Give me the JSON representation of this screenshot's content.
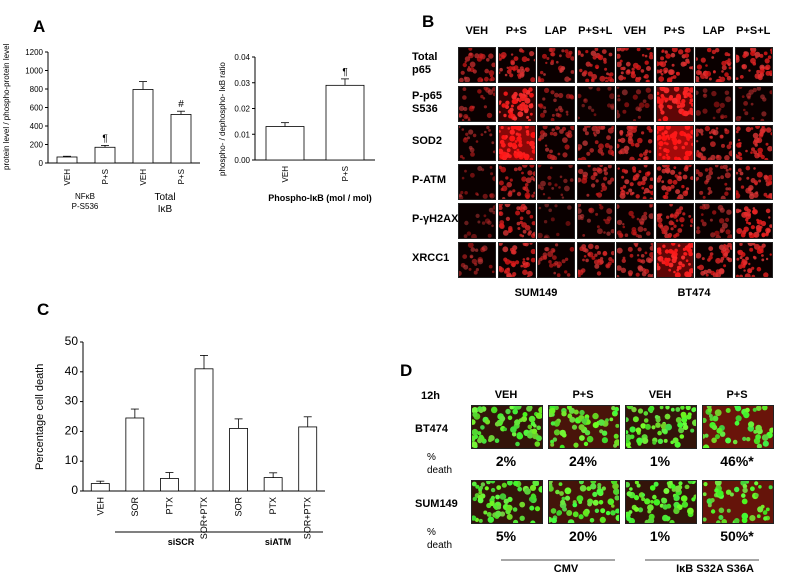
{
  "panel_a": {
    "letter": "A",
    "left_chart": {
      "y_label": "protein level / phospho-protein level",
      "x_ticks": [
        "VEH",
        "P+S",
        "VEH",
        "P+S"
      ],
      "group_labels": [
        [
          "NFκB",
          "P-S536"
        ],
        [
          "Total",
          "IκB"
        ]
      ]
    },
    "right_chart": {
      "y_label": "phospho- / dephospho- IκB ratio",
      "x_ticks": [
        "VEH",
        "P+S"
      ],
      "x_label": "Phospho-IκB (mol / mol)"
    },
    "markers": {
      "para": "¶",
      "hash": "#"
    }
  },
  "panel_b": {
    "letter": "B",
    "columns": [
      "VEH",
      "P+S",
      "LAP",
      "P+S+L",
      "VEH",
      "P+S",
      "LAP",
      "P+S+L"
    ],
    "rows": [
      [
        "Total",
        "p65"
      ],
      [
        "P-p65",
        "S536"
      ],
      [
        "SOD2"
      ],
      [
        "P-ATM"
      ],
      [
        "P-γH2AX"
      ],
      [
        "XRCC1"
      ]
    ],
    "cell_lines": [
      "SUM149",
      "BT474"
    ],
    "intensity": [
      [
        0.45,
        0.55,
        0.45,
        0.55,
        0.6,
        0.65,
        0.6,
        0.65
      ],
      [
        0.3,
        0.85,
        0.3,
        0.1,
        0.2,
        0.9,
        0.15,
        0.2
      ],
      [
        0.25,
        0.95,
        0.4,
        0.45,
        0.55,
        0.98,
        0.5,
        0.6
      ],
      [
        0.15,
        0.5,
        0.2,
        0.45,
        0.6,
        0.6,
        0.4,
        0.55
      ],
      [
        0.1,
        0.55,
        0.05,
        0.25,
        0.35,
        0.55,
        0.3,
        0.7
      ],
      [
        0.25,
        0.6,
        0.35,
        0.5,
        0.5,
        0.9,
        0.6,
        0.65
      ]
    ]
  },
  "panel_c": {
    "letter": "C",
    "x_ticks": [
      "VEH",
      "SOR",
      "PTX",
      "SOR+PTX",
      "SOR",
      "PTX",
      "SOR+PTX"
    ],
    "group_labels": [
      "siSCR",
      "siATM"
    ]
  },
  "panel_d": {
    "letter": "D",
    "time_label": "12h",
    "columns": [
      "VEH",
      "P+S",
      "VEH",
      "P+S"
    ],
    "rows": [
      {
        "cell_line": "BT474",
        "death_label": [
          "%",
          "death"
        ],
        "percentages": [
          "2%",
          "24%",
          "1%",
          "46%*"
        ],
        "red_fraction": [
          0.1,
          0.3,
          0.1,
          0.6
        ]
      },
      {
        "cell_line": "SUM149",
        "death_label": [
          "%",
          "death"
        ],
        "percentages": [
          "5%",
          "20%",
          "1%",
          "50%*"
        ],
        "red_fraction": [
          0.1,
          0.25,
          0.1,
          0.55
        ]
      }
    ],
    "group_labels": [
      "CMV",
      "IκB S32A S36A"
    ]
  },
  "chart_data": [
    {
      "type": "bar",
      "ylabel": "protein level / phospho-protein level",
      "categories": [
        "VEH",
        "P+S",
        "VEH",
        "P+S"
      ],
      "values": [
        65,
        170,
        795,
        525
      ],
      "errors": [
        8,
        20,
        85,
        35
      ],
      "ylim": [
        0,
        1200
      ],
      "yticks": [
        0,
        200,
        400,
        600,
        800,
        1000,
        1200
      ],
      "annotations": [
        "",
        "¶",
        "",
        "#"
      ]
    },
    {
      "type": "bar",
      "ylabel": "phospho- / dephospho- IκB ratio",
      "xlabel": "Phospho-IκB (mol / mol)",
      "categories": [
        "VEH",
        "P+S"
      ],
      "values": [
        0.013,
        0.029
      ],
      "errors": [
        0.0015,
        0.0025
      ],
      "ylim": [
        0,
        0.04
      ],
      "yticks": [
        "0.00",
        "0.01",
        "0.02",
        "0.03",
        "0.04"
      ],
      "annotations": [
        "",
        "¶"
      ]
    },
    {
      "type": "bar",
      "ylabel": "Percentage cell death",
      "categories": [
        "VEH",
        "SOR",
        "PTX",
        "SOR+PTX",
        "SOR",
        "PTX",
        "SOR+PTX"
      ],
      "values": [
        2.5,
        24.5,
        4.2,
        41,
        21,
        4.5,
        21.5
      ],
      "errors": [
        0.8,
        3,
        2,
        4.5,
        3.2,
        1.6,
        3.4
      ],
      "ylim": [
        0,
        50
      ],
      "yticks": [
        0,
        10,
        20,
        30,
        40,
        50
      ]
    }
  ]
}
